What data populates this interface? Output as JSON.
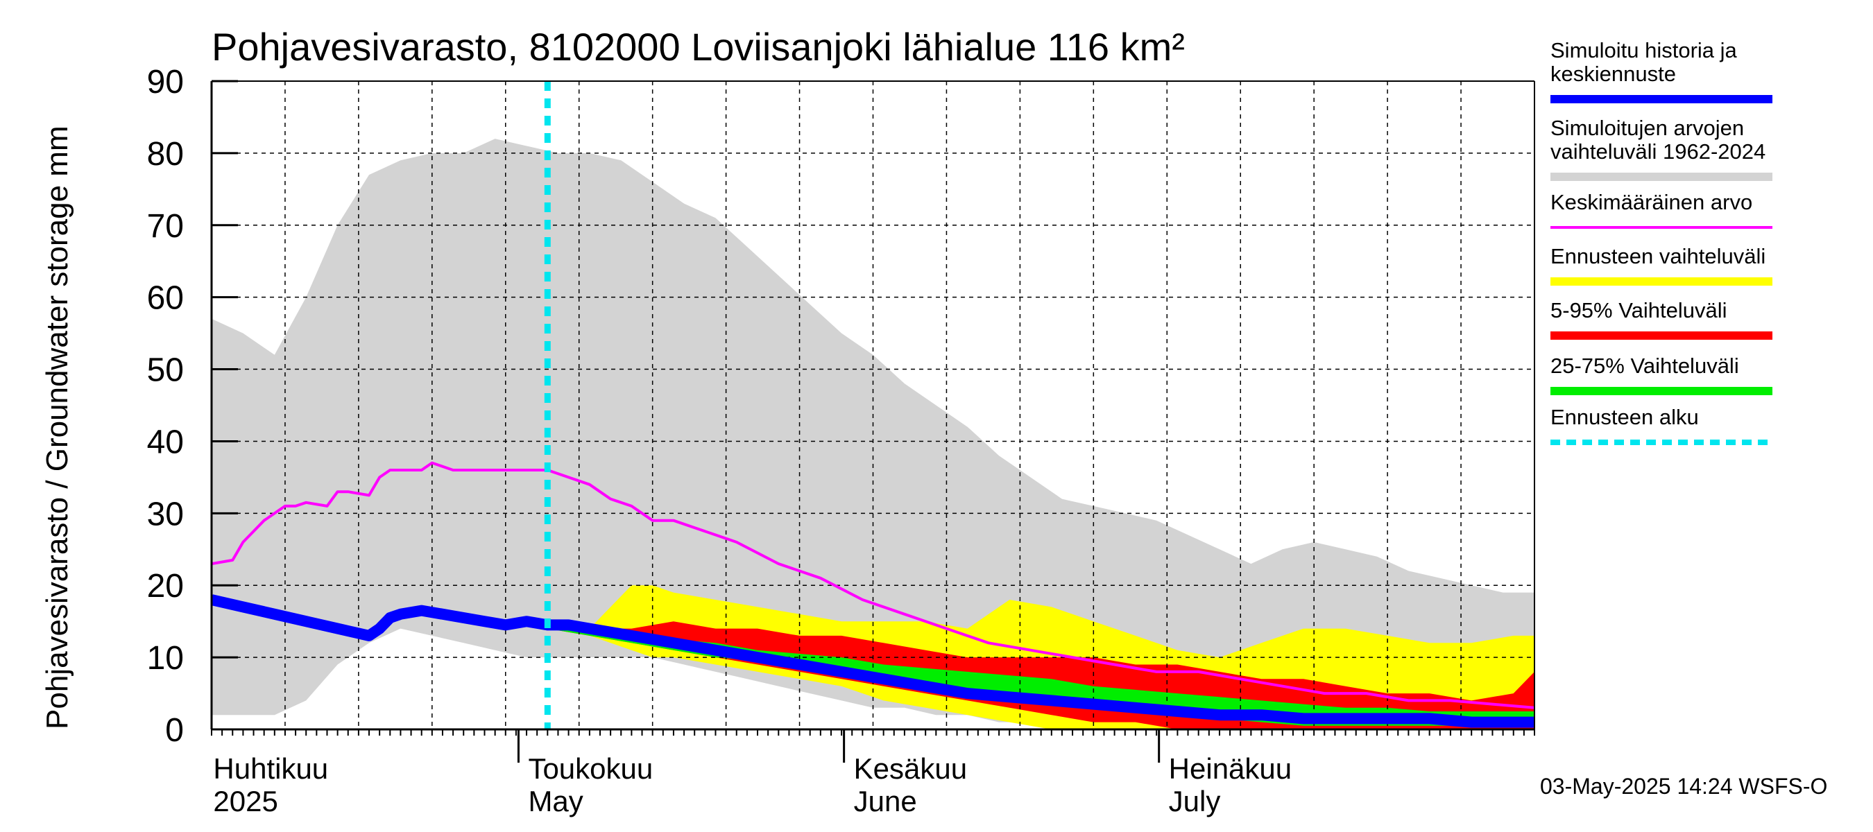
{
  "chart_data": {
    "type": "area",
    "title": "Pohjavesivarasto, 8102000 Loviisanjoki lähialue 116 km²",
    "ylabel": "Pohjavesivarasto / Groundwater storage   mm",
    "ylim": [
      0,
      90
    ],
    "yticks": [
      0,
      10,
      20,
      30,
      40,
      50,
      60,
      70,
      80,
      90
    ],
    "xlim": [
      0,
      126
    ],
    "x_unit": "days since 2025-03-29",
    "forecast_start_day": 32,
    "months": [
      {
        "fi": "Huhtikuu",
        "en": "2025",
        "day": 3
      },
      {
        "fi": "Toukokuu",
        "en": "May",
        "day": 33
      },
      {
        "fi": "Kesäkuu",
        "en": "June",
        "day": 64
      },
      {
        "fi": "Heinäkuu",
        "en": "July",
        "day": 94
      }
    ],
    "series": [
      {
        "name": "Simuloitujen arvojen vaihteluväli 1962-2024",
        "color": "#d3d3d3",
        "x": [
          0,
          3,
          6,
          9,
          12,
          15,
          18,
          21,
          24,
          27,
          30,
          33,
          36,
          39,
          42,
          45,
          48,
          51,
          54,
          57,
          60,
          63,
          66,
          69,
          72,
          75,
          78,
          81,
          84,
          87,
          90,
          93,
          96,
          99,
          102,
          105,
          108,
          111,
          114,
          117,
          120,
          123,
          126
        ],
        "upper": [
          57,
          55,
          52,
          60,
          70,
          77,
          79,
          80,
          80,
          82,
          81,
          80,
          80,
          79,
          76,
          73,
          71,
          67,
          63,
          59,
          55,
          52,
          48,
          45,
          42,
          38,
          35,
          32,
          31,
          30,
          29,
          27,
          25,
          23,
          25,
          26,
          25,
          24,
          22,
          21,
          20,
          19,
          19
        ],
        "lower": [
          2,
          2,
          2,
          4,
          9,
          12,
          14,
          13,
          12,
          11,
          10,
          10,
          10,
          10,
          10,
          9,
          8,
          7,
          6,
          5,
          4,
          3,
          3,
          2,
          2,
          1,
          1,
          1,
          0,
          0,
          0,
          0,
          0,
          0,
          0,
          0,
          0,
          0,
          0,
          0,
          0,
          0,
          0
        ]
      },
      {
        "name": "Ennusteen vaihteluväli",
        "color": "#ffff00",
        "x": [
          32,
          36,
          40,
          42,
          44,
          48,
          52,
          56,
          60,
          64,
          68,
          72,
          76,
          80,
          84,
          88,
          92,
          96,
          100,
          104,
          108,
          112,
          116,
          120,
          124,
          126
        ],
        "upper": [
          14,
          14,
          20,
          20,
          19,
          18,
          17,
          16,
          15,
          15,
          15,
          14,
          18,
          17,
          15,
          13,
          11,
          10,
          12,
          14,
          14,
          13,
          12,
          12,
          13,
          13
        ],
        "lower": [
          14,
          13,
          11,
          10,
          10,
          9,
          8,
          7,
          6,
          4,
          3,
          2,
          1,
          0,
          0,
          0,
          0,
          0,
          0,
          0,
          0,
          0,
          0,
          0,
          0,
          0
        ]
      },
      {
        "name": "5-95% Vaihteluväli",
        "color": "#ff0000",
        "x": [
          32,
          36,
          40,
          44,
          48,
          52,
          56,
          60,
          64,
          68,
          72,
          76,
          80,
          84,
          88,
          92,
          96,
          100,
          104,
          108,
          112,
          116,
          120,
          124,
          126
        ],
        "upper": [
          14,
          14,
          14,
          15,
          14,
          14,
          13,
          13,
          12,
          11,
          10,
          10,
          10,
          10,
          9,
          9,
          8,
          7,
          7,
          6,
          5,
          5,
          4,
          5,
          8
        ],
        "lower": [
          14,
          13,
          12,
          11,
          10,
          9,
          8,
          7,
          6,
          5,
          4,
          3,
          2,
          1,
          1,
          0,
          0,
          0,
          0,
          0,
          0,
          0,
          0,
          0,
          0
        ]
      },
      {
        "name": "25-75% Vaihteluväli",
        "color": "#00ee00",
        "x": [
          32,
          36,
          40,
          44,
          48,
          52,
          56,
          60,
          64,
          68,
          72,
          76,
          80,
          84,
          88,
          92,
          96,
          100,
          104,
          108,
          112,
          116,
          120,
          124,
          126
        ],
        "upper": [
          14.5,
          14,
          13,
          12.5,
          12,
          11,
          10.5,
          10,
          9,
          8.5,
          8,
          7.5,
          7,
          6,
          5.5,
          5,
          4.5,
          4,
          3.5,
          3,
          3,
          2.5,
          2.5,
          2.5,
          2.5
        ],
        "lower": [
          14,
          13,
          12,
          11,
          10,
          9.5,
          8.5,
          7.5,
          6.5,
          5.5,
          5,
          4,
          3.5,
          3,
          2.5,
          2,
          1.5,
          1,
          0.5,
          0.5,
          0.5,
          0.5,
          0.5,
          0.5,
          0.5
        ]
      },
      {
        "name": "Keskimääräinen arvo",
        "color": "#ff00ff",
        "x": [
          0,
          2,
          3,
          5,
          7,
          8,
          9,
          11,
          12,
          13,
          15,
          16,
          17,
          18,
          20,
          21,
          23,
          24,
          26,
          28,
          30,
          32,
          34,
          36,
          38,
          40,
          42,
          44,
          46,
          48,
          50,
          54,
          58,
          62,
          66,
          70,
          74,
          78,
          82,
          86,
          90,
          94,
          98,
          102,
          106,
          110,
          114,
          118,
          122,
          126
        ],
        "y": [
          23,
          23.5,
          26,
          29,
          31,
          31,
          31.5,
          31,
          33,
          33,
          32.5,
          35,
          36,
          36,
          36,
          37,
          36,
          36,
          36,
          36,
          36,
          36,
          35,
          34,
          32,
          31,
          29,
          29,
          28,
          27,
          26,
          23,
          21,
          18,
          16,
          14,
          12,
          11,
          10,
          9,
          8,
          8,
          7,
          6,
          5,
          5,
          4,
          4,
          3.5,
          3
        ]
      },
      {
        "name": "Simuloitu historia ja keskiennuste",
        "color": "#0000ff",
        "x": [
          0,
          3,
          6,
          9,
          12,
          15,
          16,
          17,
          18,
          20,
          22,
          24,
          26,
          28,
          30,
          32,
          34,
          36,
          38,
          40,
          44,
          48,
          52,
          56,
          60,
          64,
          68,
          72,
          76,
          80,
          84,
          88,
          92,
          96,
          100,
          104,
          108,
          112,
          116,
          120,
          124,
          126
        ],
        "y": [
          18,
          17,
          16,
          15,
          14,
          13,
          14,
          15.5,
          16,
          16.5,
          16,
          15.5,
          15,
          14.5,
          15,
          14.5,
          14.5,
          14,
          13.5,
          13,
          12,
          11,
          10,
          9,
          8,
          7,
          6,
          5,
          4.5,
          4,
          3.5,
          3,
          2.5,
          2,
          2,
          1.5,
          1.5,
          1.5,
          1.5,
          1,
          1,
          1
        ]
      }
    ],
    "legend": [
      {
        "label": "Simuloitu historia ja keskiennuste",
        "color": "#0000ff",
        "style": "thick"
      },
      {
        "label": "Simuloitujen arvojen vaihteluväli 1962-2024",
        "color": "#d3d3d3",
        "style": "thick"
      },
      {
        "label": "Keskimääräinen arvo",
        "color": "#ff00ff",
        "style": "thin"
      },
      {
        "label": "Ennusteen vaihteluväli",
        "color": "#ffff00",
        "style": "thick"
      },
      {
        "label": "5-95% Vaihteluväli",
        "color": "#ff0000",
        "style": "thick"
      },
      {
        "label": "25-75% Vaihteluväli",
        "color": "#00ee00",
        "style": "thick"
      },
      {
        "label": "Ennusteen alku",
        "color": "#00e5ee",
        "style": "dashed"
      }
    ],
    "footer": "03-May-2025 14:24 WSFS-O"
  }
}
